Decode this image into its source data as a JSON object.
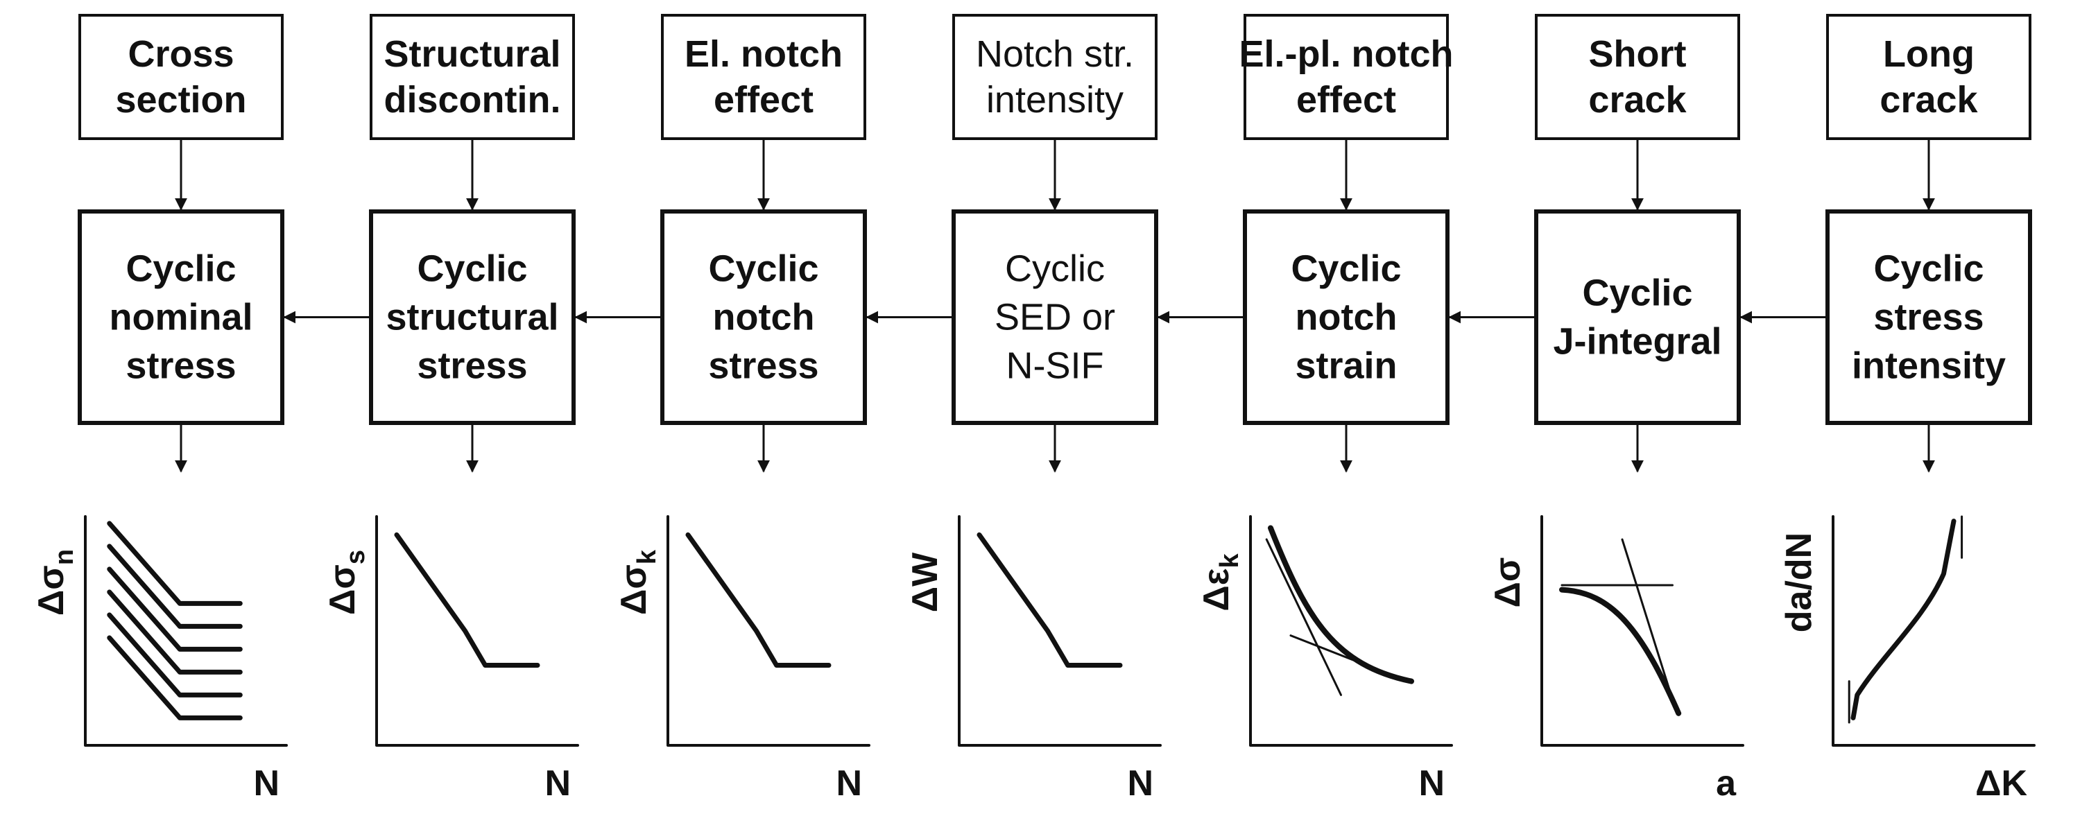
{
  "columns": [
    {
      "top_lines": [
        "Cross",
        "section"
      ],
      "mid_lines": [
        "Cyclic",
        "nominal",
        "stress"
      ],
      "y_label_main": "Δσ",
      "y_label_sub": "n",
      "x_label": "N",
      "curve_type": "family-sn",
      "top_bold": true,
      "mid_bold": true
    },
    {
      "top_lines": [
        "Structural",
        "discontin."
      ],
      "mid_lines": [
        "Cyclic",
        "structural",
        "stress"
      ],
      "y_label_main": "Δσ",
      "y_label_sub": "s",
      "x_label": "N",
      "curve_type": "sn",
      "top_bold": true,
      "mid_bold": true
    },
    {
      "top_lines": [
        "El. notch",
        "effect"
      ],
      "mid_lines": [
        "Cyclic",
        "notch",
        "stress"
      ],
      "y_label_main": "Δσ",
      "y_label_sub": "k",
      "x_label": "N",
      "curve_type": "sn",
      "top_bold": true,
      "mid_bold": true
    },
    {
      "top_lines": [
        "Notch str.",
        "intensity"
      ],
      "mid_lines": [
        "Cyclic",
        "SED or",
        "N-SIF"
      ],
      "y_label_main": "ΔW",
      "y_label_sub": "",
      "x_label": "N",
      "curve_type": "sn",
      "top_bold": false,
      "mid_bold": false
    },
    {
      "top_lines": [
        "El.-pl. notch",
        "effect"
      ],
      "mid_lines": [
        "Cyclic",
        "notch",
        "strain"
      ],
      "y_label_main": "Δε",
      "y_label_sub": "k",
      "x_label": "N",
      "curve_type": "strain-life",
      "top_bold": true,
      "mid_bold": true
    },
    {
      "top_lines": [
        "Short",
        "crack"
      ],
      "mid_lines": [
        "Cyclic",
        "J-integral"
      ],
      "y_label_main": "Δσ",
      "y_label_sub": "",
      "x_label": "a",
      "curve_type": "kitagawa",
      "top_bold": true,
      "mid_bold": true
    },
    {
      "top_lines": [
        "Long",
        "crack"
      ],
      "mid_lines": [
        "Cyclic",
        "stress",
        "intensity"
      ],
      "y_label_main": "da/dN",
      "y_label_sub": "",
      "x_label": "ΔK",
      "curve_type": "crack-growth",
      "top_bold": true,
      "mid_bold": true
    }
  ]
}
